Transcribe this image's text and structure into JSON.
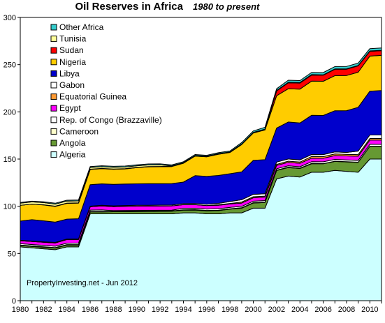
{
  "chart_data": {
    "type": "area",
    "stacked": true,
    "title": "Oil Reserves  in Africa",
    "subtitle": "1980 to present",
    "annotation": "PropertyInvesting.net  - Jun 2012",
    "xlabel": "",
    "ylabel": "",
    "xlim": [
      1980,
      2011
    ],
    "ylim": [
      0,
      300
    ],
    "y_ticks": [
      0,
      50,
      100,
      150,
      200,
      250,
      300
    ],
    "x_ticks": [
      1980,
      1982,
      1984,
      1986,
      1988,
      1990,
      1992,
      1994,
      1996,
      1998,
      2000,
      2002,
      2004,
      2006,
      2008,
      2010
    ],
    "grid": false,
    "legend_position": "top-left",
    "x": [
      1980,
      1981,
      1982,
      1983,
      1984,
      1985,
      1986,
      1987,
      1988,
      1989,
      1990,
      1991,
      1992,
      1993,
      1994,
      1995,
      1996,
      1997,
      1998,
      1999,
      2000,
      2001,
      2002,
      2003,
      2004,
      2005,
      2006,
      2007,
      2008,
      2009,
      2010,
      2011
    ],
    "series": [
      {
        "name": "Algeria",
        "color": "#CCFFFF",
        "values": [
          57,
          56,
          55,
          54,
          57,
          57,
          92,
          92,
          92,
          92,
          92,
          92,
          92,
          92,
          93,
          93,
          92,
          92,
          93,
          93,
          98,
          98,
          129,
          132,
          131,
          136,
          136,
          138,
          137,
          136,
          150,
          150
        ]
      },
      {
        "name": "Angola",
        "color": "#669933",
        "values": [
          1.4,
          1.5,
          1.6,
          1.7,
          1.9,
          2.0,
          2.0,
          2.1,
          2.2,
          2.3,
          2.4,
          2.5,
          2.6,
          2.7,
          2.9,
          3.0,
          3.2,
          3.4,
          4.0,
          5.0,
          5.4,
          6.0,
          8.9,
          9.0,
          9.0,
          9.0,
          9.0,
          9.5,
          10.0,
          10.5,
          13.5,
          13.5
        ]
      },
      {
        "name": "Cameroon",
        "color": "#FFFFCC",
        "values": [
          0.5,
          0.5,
          0.5,
          0.5,
          0.5,
          0.5,
          0.5,
          0.5,
          0.4,
          0.4,
          0.4,
          0.4,
          0.4,
          0.4,
          0.4,
          0.4,
          0.4,
          0.4,
          0.4,
          0.4,
          0.4,
          0.4,
          0.4,
          0.4,
          0.4,
          0.4,
          0.2,
          0.2,
          0.2,
          0.2,
          0.2,
          0.2
        ]
      },
      {
        "name": "Rep. of Congo (Brazzaville)",
        "color": "#FFFFFF",
        "values": [
          1.5,
          1.5,
          1.5,
          1.5,
          1.5,
          1.5,
          1.5,
          1.5,
          0.8,
          0.8,
          0.8,
          0.8,
          0.8,
          0.8,
          1.5,
          1.5,
          1.5,
          1.5,
          1.5,
          1.5,
          1.6,
          1.6,
          1.5,
          1.5,
          1.5,
          1.8,
          1.9,
          1.9,
          1.9,
          1.9,
          1.9,
          1.9
        ]
      },
      {
        "name": "Egypt",
        "color": "#FF00FF",
        "values": [
          3.1,
          3.2,
          3.3,
          3.4,
          3.8,
          3.9,
          3.5,
          4.2,
          4.3,
          4.5,
          4.5,
          4.5,
          4.5,
          4.5,
          3.9,
          3.8,
          3.7,
          3.7,
          3.5,
          3.5,
          3.6,
          3.7,
          3.5,
          3.6,
          3.6,
          3.7,
          3.7,
          4.1,
          4.2,
          4.4,
          4.5,
          4.5
        ]
      },
      {
        "name": "Equatorial Guinea",
        "color": "#FF9933",
        "values": [
          0,
          0,
          0,
          0,
          0,
          0,
          0,
          0,
          0,
          0,
          0,
          0,
          0,
          0,
          0,
          0,
          0,
          0.6,
          0.6,
          1.1,
          1.1,
          1.1,
          1.1,
          1.3,
          1.3,
          1.8,
          1.8,
          1.8,
          1.7,
          1.7,
          1.7,
          1.7
        ]
      },
      {
        "name": "Gabon",
        "color": "#FFFFFF",
        "values": [
          0.5,
          0.5,
          0.5,
          0.6,
          0.6,
          0.6,
          0.6,
          0.7,
          0.7,
          0.8,
          0.9,
          0.9,
          0.9,
          0.9,
          1.1,
          1.2,
          1.3,
          1.5,
          2.0,
          2.4,
          2.5,
          2.5,
          2.4,
          2.3,
          2.3,
          2.1,
          2.1,
          2.0,
          2.0,
          3.7,
          3.7,
          3.7
        ]
      },
      {
        "name": "Libya",
        "color": "#0000CC",
        "values": [
          20.3,
          22.6,
          22.2,
          21.5,
          21.1,
          21.3,
          22.8,
          22.8,
          22.8,
          22.8,
          22.8,
          22.8,
          22.8,
          22.8,
          22.8,
          29.5,
          29.5,
          29.5,
          29.5,
          29.5,
          36.0,
          36.0,
          36.0,
          39.1,
          39.1,
          41.5,
          41.5,
          43.7,
          44.3,
          46.4,
          46.4,
          47.1
        ]
      },
      {
        "name": "Nigeria",
        "color": "#FFCC00",
        "values": [
          16.7,
          16.5,
          16.8,
          16.6,
          16.7,
          16.6,
          16.1,
          16.0,
          16.0,
          16.0,
          17.1,
          17.9,
          17.9,
          18.0,
          20.0,
          20.8,
          20.8,
          22.5,
          22.5,
          29.0,
          29.0,
          31.5,
          34.3,
          35.3,
          35.9,
          36.2,
          36.2,
          37.2,
          37.2,
          37.2,
          37.2,
          37.2
        ]
      },
      {
        "name": "Sudan",
        "color": "#FF0000",
        "values": [
          0,
          0,
          0.2,
          0.3,
          0.3,
          0.3,
          0.3,
          0.3,
          0.3,
          0.3,
          0.3,
          0.3,
          0.3,
          0.3,
          0.3,
          0.3,
          0.3,
          0.3,
          0.3,
          0.3,
          0.3,
          0.6,
          5.0,
          6.3,
          6.4,
          6.4,
          6.4,
          6.7,
          6.7,
          6.7,
          5.0,
          5.0
        ]
      },
      {
        "name": "Tunisia",
        "color": "#FFFF99",
        "values": [
          2.3,
          2.3,
          2.3,
          2.2,
          2.1,
          2.0,
          1.8,
          1.8,
          1.8,
          1.7,
          1.7,
          1.7,
          1.7,
          0.4,
          0.3,
          0.3,
          0.3,
          0.3,
          0.3,
          0.3,
          0.4,
          0.3,
          0.5,
          0.5,
          0.6,
          0.6,
          0.4,
          0.4,
          0.4,
          0.4,
          0.4,
          0.4
        ]
      },
      {
        "name": "Other Africa",
        "color": "#33CCCC",
        "values": [
          0.8,
          0.8,
          0.8,
          0.9,
          0.9,
          1.0,
          1.0,
          1.0,
          1.0,
          1.0,
          1.0,
          1.0,
          1.0,
          1.0,
          1.0,
          1.0,
          1.0,
          1.0,
          1.0,
          1.5,
          1.5,
          1.9,
          1.9,
          2.2,
          2.0,
          2.2,
          2.4,
          2.5,
          2.5,
          2.5,
          2.5,
          2.5
        ]
      }
    ]
  }
}
